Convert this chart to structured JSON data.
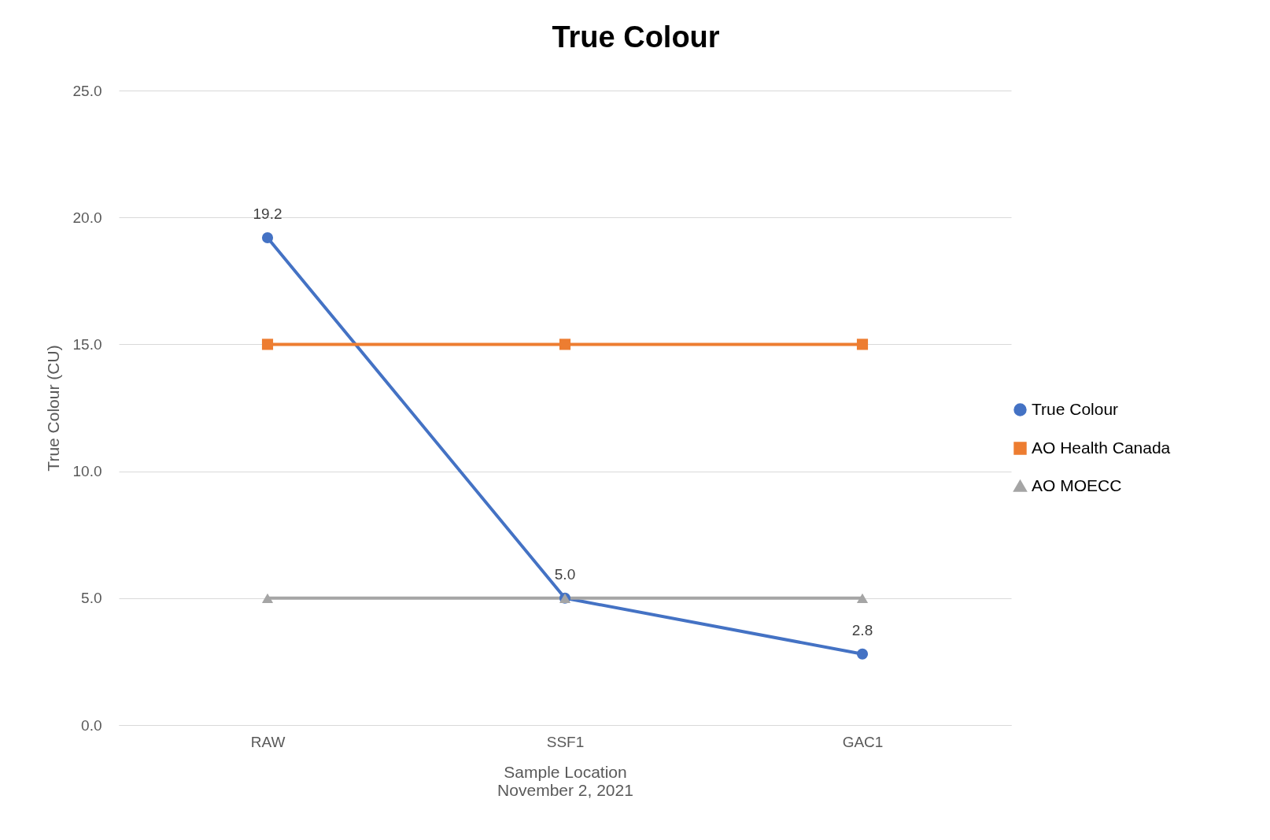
{
  "chart_data": {
    "type": "line",
    "title": "True Colour",
    "xlabel": "Sample Location\nNovember 2, 2021",
    "ylabel": "True Colour (CU)",
    "categories": [
      "RAW",
      "SSF1",
      "GAC1"
    ],
    "series": [
      {
        "name": "True Colour",
        "color": "#4472c4",
        "marker": "circle",
        "values": [
          19.2,
          5.0,
          2.8
        ],
        "value_labels": [
          "19.2",
          "5.0",
          "2.8"
        ]
      },
      {
        "name": "AO Health Canada",
        "color": "#ed7d31",
        "marker": "square",
        "values": [
          15,
          15,
          15
        ]
      },
      {
        "name": "AO MOECC",
        "color": "#a5a5a5",
        "marker": "triangle",
        "values": [
          5,
          5,
          5
        ]
      }
    ],
    "ylim": [
      0,
      25
    ],
    "yticks": [
      {
        "value": 0,
        "label": "0.0"
      },
      {
        "value": 5,
        "label": "5.0"
      },
      {
        "value": 10,
        "label": "10.0"
      },
      {
        "value": 15,
        "label": "15.0"
      },
      {
        "value": 20,
        "label": "20.0"
      },
      {
        "value": 25,
        "label": "25.0"
      }
    ],
    "grid": "y",
    "legend": "right",
    "line_style": "solid"
  }
}
